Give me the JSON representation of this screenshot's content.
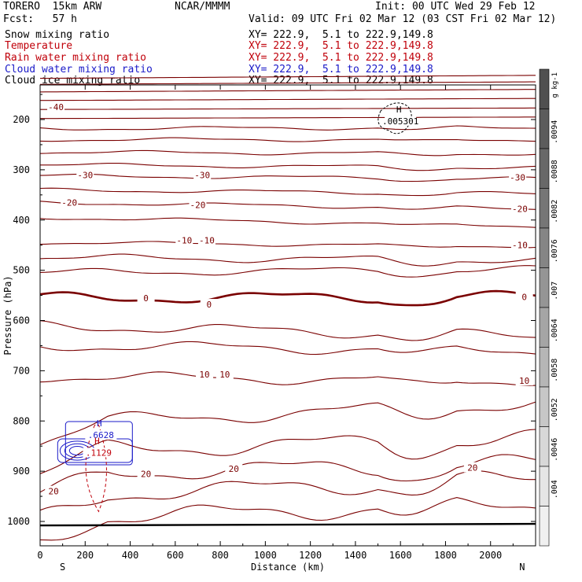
{
  "header": {
    "model": "TORERO  15km ARW",
    "org": "NCAR/MMMM",
    "init": "Init: 00 UTC Wed 29 Feb 12",
    "fcst": "Fcst:   57 h",
    "valid": "Valid: 09 UTC Fri 02 Mar 12 (03 CST Fri 02 Mar 12)"
  },
  "legend": [
    {
      "name": "Snow mixing ratio",
      "xy": "XY= 222.9,  5.1 to 222.9,149.8",
      "color": "#000000"
    },
    {
      "name": "Temperature",
      "xy": "XY= 222.9,  5.1 to 222.9,149.8",
      "color": "#c0000a"
    },
    {
      "name": "Rain water mixing ratio",
      "xy": "XY= 222.9,  5.1 to 222.9,149.8",
      "color": "#c0000a"
    },
    {
      "name": "Cloud water mixing ratio",
      "xy": "XY= 222.9,  5.1 to 222.9,149.8",
      "color": "#1a1ac8"
    },
    {
      "name": "Cloud ice mixing ratio",
      "xy": "XY= 222.9,  5.1 to 222.9,149.8",
      "color": "#000000"
    }
  ],
  "chart_data": {
    "type": "contour",
    "xlabel": "Distance (km)",
    "ylabel": "Pressure (hPa)",
    "xlim": [
      0,
      2200
    ],
    "ylim": [
      1050,
      100
    ],
    "x_ticks": [
      0,
      200,
      400,
      600,
      800,
      1000,
      1200,
      1400,
      1600,
      1800,
      2000
    ],
    "y_ticks": [
      200,
      300,
      400,
      500,
      600,
      700,
      800,
      900,
      1000
    ],
    "x_end_labels": {
      "left": "S",
      "right": "N"
    },
    "colorbar": {
      "unit": "g kg-1",
      "labels": [
        ".0094",
        ".0088",
        ".0082",
        ".0076",
        ".007",
        ".0064",
        ".0058",
        ".0052",
        ".0046",
        ".004"
      ],
      "colors": [
        "#505050",
        "#5c5c5c",
        "#686868",
        "#767676",
        "#858585",
        "#959595",
        "#a5a5a5",
        "#b6b6b6",
        "#c7c7c7",
        "#d8d8d8",
        "#e6e6e6",
        "#f0f0f0"
      ]
    },
    "temperature_contours": [
      {
        "label": "-40",
        "label_x": 70,
        "pressure": 175
      },
      {
        "label": "-30",
        "label_x": 200,
        "pressure": 310
      },
      {
        "label": "-30",
        "label_x": 720,
        "pressure": 310
      },
      {
        "label": "-30",
        "label_x": 2120,
        "pressure": 315
      },
      {
        "label": "-20",
        "label_x": 130,
        "pressure": 365
      },
      {
        "label": "-20",
        "label_x": 700,
        "pressure": 370
      },
      {
        "label": "-20",
        "label_x": 2130,
        "pressure": 378
      },
      {
        "label": "-10",
        "label_x": 640,
        "pressure": 440
      },
      {
        "label": "-10",
        "label_x": 740,
        "pressure": 440
      },
      {
        "label": "-10",
        "label_x": 2130,
        "pressure": 450
      },
      {
        "label": "0",
        "label_x": 470,
        "pressure": 555
      },
      {
        "label": "0",
        "label_x": 750,
        "pressure": 568
      },
      {
        "label": "0",
        "label_x": 2150,
        "pressure": 553
      },
      {
        "label": "10",
        "label_x": 730,
        "pressure": 707
      },
      {
        "label": "10",
        "label_x": 820,
        "pressure": 707
      },
      {
        "label": "10",
        "label_x": 2150,
        "pressure": 720
      },
      {
        "label": "20",
        "label_x": 470,
        "pressure": 905
      },
      {
        "label": "20",
        "label_x": 860,
        "pressure": 895
      },
      {
        "label": "20",
        "label_x": 1920,
        "pressure": 893
      },
      {
        "label": "20",
        "label_x": 60,
        "pressure": 940
      }
    ],
    "annotations": [
      {
        "text": "H",
        "text2": ".005301",
        "x": 1600,
        "pressure": 195,
        "color": "#000000"
      },
      {
        "text": "H",
        "text2": ".6628",
        "x": 270,
        "pressure": 820,
        "color": "#1a1ac8"
      },
      {
        "text": "H",
        "text2": ".1129",
        "x": 260,
        "pressure": 855,
        "color": "#c0000a"
      }
    ],
    "ground_pressure": 1008
  }
}
